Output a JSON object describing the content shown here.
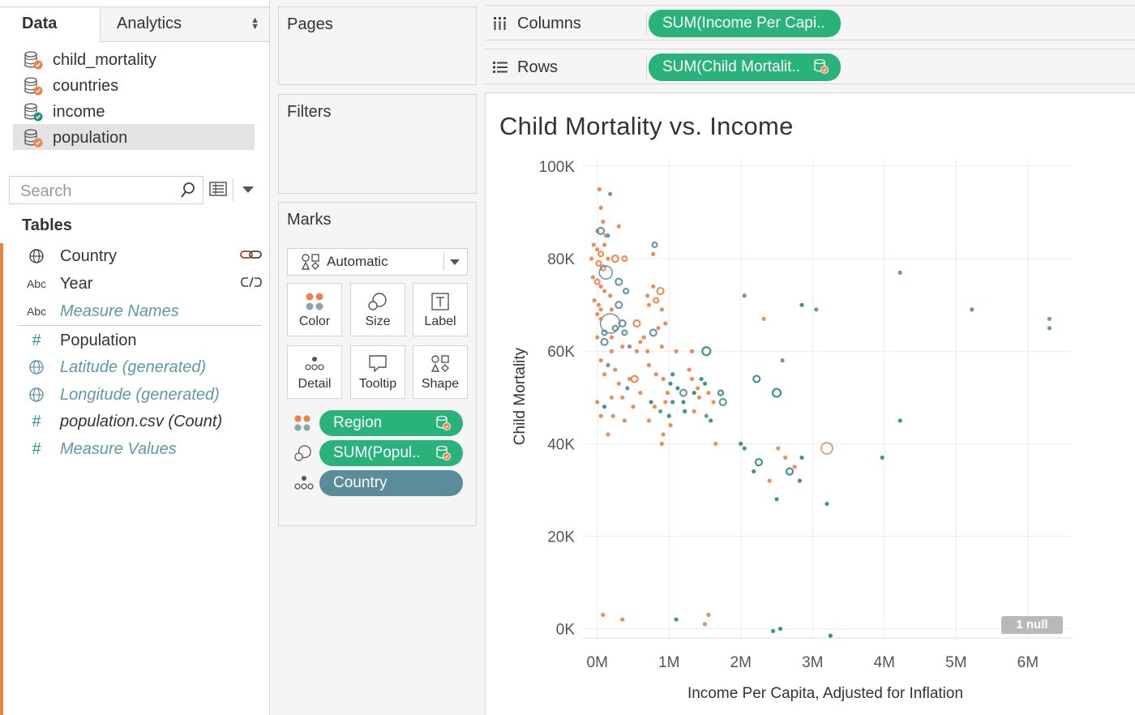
{
  "left_pane": {
    "tabs": {
      "data": "Data",
      "analytics": "Analytics"
    },
    "data_sources": [
      "child_mortality",
      "countries",
      "income",
      "population"
    ],
    "selected_source": "population",
    "search_placeholder": "Search",
    "tables_title": "Tables",
    "fields": [
      {
        "name": "Country",
        "type": "geo",
        "style": "normal",
        "right_icon": "link-icon"
      },
      {
        "name": "Year",
        "type": "Abc",
        "style": "normal",
        "right_icon": "broken-link-icon"
      },
      {
        "name": "Measure Names",
        "type": "Abc",
        "style": "generated"
      },
      {
        "name": "Population",
        "type": "#",
        "style": "normal"
      },
      {
        "name": "Latitude (generated)",
        "type": "geo",
        "style": "generated"
      },
      {
        "name": "Longitude (generated)",
        "type": "geo",
        "style": "generated"
      },
      {
        "name": "population.csv (Count)",
        "type": "#",
        "style": "italic"
      },
      {
        "name": "Measure Values",
        "type": "#",
        "style": "generated"
      }
    ]
  },
  "shelves": {
    "pages": "Pages",
    "filters": "Filters",
    "columns": {
      "label": "Columns",
      "pill": "SUM(Income Per Capi.."
    },
    "rows": {
      "label": "Rows",
      "pill": "SUM(Child Mortalit.."
    }
  },
  "marks": {
    "title": "Marks",
    "mark_type": "Automatic",
    "buttons": [
      "Color",
      "Size",
      "Label",
      "Detail",
      "Tooltip",
      "Shape"
    ],
    "pills": [
      {
        "name": "Region",
        "icon": "color-icon",
        "style": "green"
      },
      {
        "name": "SUM(Popul..",
        "icon": "size-icon",
        "style": "green"
      },
      {
        "name": "Country",
        "icon": "detail-icon",
        "style": "teal"
      }
    ]
  },
  "colors": {
    "orange": "#e8834a",
    "teal": "#2a8a7e",
    "slate": "#5b8ea0",
    "green_pill": "#2ab27b",
    "teal_pill": "#5a8c9c"
  },
  "chart_data": {
    "type": "scatter",
    "title": "Child Mortality vs. Income",
    "xlabel": "Income Per Capita, Adjusted for Inflation",
    "ylabel": "Child Mortality",
    "xlim": [
      -0.2,
      6.6
    ],
    "ylim": [
      -2,
      100
    ],
    "x_unit": "M",
    "y_unit": "K",
    "x_ticks": [
      0,
      1,
      2,
      3,
      4,
      5,
      6
    ],
    "x_tick_labels": [
      "0M",
      "1M",
      "2M",
      "3M",
      "4M",
      "5M",
      "6M"
    ],
    "y_ticks": [
      0,
      20,
      40,
      60,
      80,
      100
    ],
    "y_tick_labels": [
      "0K",
      "20K",
      "40K",
      "60K",
      "80K",
      "100K"
    ],
    "grid": true,
    "null_indicator": "1 null",
    "points": [
      {
        "x": 0.03,
        "y": 95,
        "c": "orange",
        "s": 2
      },
      {
        "x": 0.18,
        "y": 94,
        "c": "slate",
        "s": 2
      },
      {
        "x": 0.05,
        "y": 91,
        "c": "orange",
        "s": 2
      },
      {
        "x": 0.0,
        "y": 86,
        "c": "orange",
        "s": 2
      },
      {
        "x": 0.08,
        "y": 88,
        "c": "orange",
        "s": 2
      },
      {
        "x": 0.12,
        "y": 85,
        "c": "orange",
        "s": 2
      },
      {
        "x": 0.3,
        "y": 87,
        "c": "orange",
        "s": 2
      },
      {
        "x": 0.05,
        "y": 86,
        "c": "slate",
        "s": 4
      },
      {
        "x": 0.15,
        "y": 85,
        "c": "slate",
        "s": 2
      },
      {
        "x": -0.05,
        "y": 83,
        "c": "orange",
        "s": 2
      },
      {
        "x": 0.0,
        "y": 82,
        "c": "orange",
        "s": 2
      },
      {
        "x": 0.05,
        "y": 81,
        "c": "orange",
        "s": 3
      },
      {
        "x": 0.1,
        "y": 83,
        "c": "orange",
        "s": 2
      },
      {
        "x": -0.08,
        "y": 80,
        "c": "orange",
        "s": 2
      },
      {
        "x": 0.02,
        "y": 79,
        "c": "orange",
        "s": 3
      },
      {
        "x": 0.08,
        "y": 78,
        "c": "orange",
        "s": 3
      },
      {
        "x": 0.15,
        "y": 80,
        "c": "orange",
        "s": 2
      },
      {
        "x": 0.25,
        "y": 80,
        "c": "orange",
        "s": 4
      },
      {
        "x": 0.12,
        "y": 77,
        "c": "slate",
        "s": 8
      },
      {
        "x": 0.38,
        "y": 80,
        "c": "orange",
        "s": 3
      },
      {
        "x": 0.8,
        "y": 83,
        "c": "slate",
        "s": 3
      },
      {
        "x": 0.78,
        "y": 81,
        "c": "orange",
        "s": 2
      },
      {
        "x": -0.06,
        "y": 76,
        "c": "orange",
        "s": 2
      },
      {
        "x": 0.0,
        "y": 75,
        "c": "orange",
        "s": 3
      },
      {
        "x": 0.05,
        "y": 74,
        "c": "orange",
        "s": 2
      },
      {
        "x": 0.1,
        "y": 73,
        "c": "orange",
        "s": 2
      },
      {
        "x": 0.18,
        "y": 72,
        "c": "orange",
        "s": 2
      },
      {
        "x": 0.3,
        "y": 75,
        "c": "slate",
        "s": 4
      },
      {
        "x": 0.4,
        "y": 73,
        "c": "slate",
        "s": 3
      },
      {
        "x": -0.04,
        "y": 71,
        "c": "orange",
        "s": 2
      },
      {
        "x": 0.02,
        "y": 70,
        "c": "orange",
        "s": 2
      },
      {
        "x": 0.0,
        "y": 68,
        "c": "orange",
        "s": 2
      },
      {
        "x": 0.05,
        "y": 69,
        "c": "orange",
        "s": 2
      },
      {
        "x": 0.2,
        "y": 69,
        "c": "orange",
        "s": 2
      },
      {
        "x": 0.3,
        "y": 70,
        "c": "slate",
        "s": 4
      },
      {
        "x": 0.7,
        "y": 72,
        "c": "orange",
        "s": 2
      },
      {
        "x": 0.82,
        "y": 71,
        "c": "orange",
        "s": 3
      },
      {
        "x": 0.88,
        "y": 73,
        "c": "orange",
        "s": 4
      },
      {
        "x": 0.78,
        "y": 74,
        "c": "orange",
        "s": 2
      },
      {
        "x": 0.72,
        "y": 70,
        "c": "orange",
        "s": 2
      },
      {
        "x": 0.9,
        "y": 69,
        "c": "orange",
        "s": 2
      },
      {
        "x": 0.18,
        "y": 66,
        "c": "slate",
        "s": 12
      },
      {
        "x": 0.05,
        "y": 67,
        "c": "orange",
        "s": 2
      },
      {
        "x": 0.1,
        "y": 64,
        "c": "slate",
        "s": 3
      },
      {
        "x": 0.25,
        "y": 65,
        "c": "slate",
        "s": 3
      },
      {
        "x": 0.35,
        "y": 66,
        "c": "slate",
        "s": 4
      },
      {
        "x": 0.38,
        "y": 64,
        "c": "slate",
        "s": 3
      },
      {
        "x": 0.1,
        "y": 62,
        "c": "slate",
        "s": 4
      },
      {
        "x": 0.0,
        "y": 63,
        "c": "orange",
        "s": 2
      },
      {
        "x": 0.2,
        "y": 63,
        "c": "orange",
        "s": 2
      },
      {
        "x": 0.55,
        "y": 66,
        "c": "orange",
        "s": 4
      },
      {
        "x": 0.65,
        "y": 63,
        "c": "orange",
        "s": 2
      },
      {
        "x": 0.78,
        "y": 64,
        "c": "slate",
        "s": 4
      },
      {
        "x": 0.85,
        "y": 65,
        "c": "orange",
        "s": 2
      },
      {
        "x": 0.95,
        "y": 66,
        "c": "orange",
        "s": 2
      },
      {
        "x": 0.6,
        "y": 62,
        "c": "orange",
        "s": 2
      },
      {
        "x": 0.2,
        "y": 60,
        "c": "orange",
        "s": 2
      },
      {
        "x": 0.35,
        "y": 61,
        "c": "orange",
        "s": 2
      },
      {
        "x": 0.45,
        "y": 61,
        "c": "slate",
        "s": 2
      },
      {
        "x": 0.55,
        "y": 60,
        "c": "orange",
        "s": 2
      },
      {
        "x": 0.7,
        "y": 60,
        "c": "orange",
        "s": 2
      },
      {
        "x": 0.9,
        "y": 61,
        "c": "orange",
        "s": 2
      },
      {
        "x": 1.1,
        "y": 60,
        "c": "orange",
        "s": 2
      },
      {
        "x": 1.32,
        "y": 60,
        "c": "orange",
        "s": 2
      },
      {
        "x": 1.52,
        "y": 60,
        "c": "teal",
        "s": 5
      },
      {
        "x": 0.05,
        "y": 58,
        "c": "orange",
        "s": 2
      },
      {
        "x": 0.15,
        "y": 57,
        "c": "slate",
        "s": 2
      },
      {
        "x": 0.25,
        "y": 56,
        "c": "orange",
        "s": 2
      },
      {
        "x": 0.1,
        "y": 55,
        "c": "orange",
        "s": 2
      },
      {
        "x": 0.3,
        "y": 53,
        "c": "orange",
        "s": 2
      },
      {
        "x": 0.42,
        "y": 52,
        "c": "slate",
        "s": 2
      },
      {
        "x": 0.45,
        "y": 54,
        "c": "orange",
        "s": 2
      },
      {
        "x": 0.52,
        "y": 54,
        "c": "orange",
        "s": 4
      },
      {
        "x": 0.72,
        "y": 57,
        "c": "orange",
        "s": 2
      },
      {
        "x": 0.82,
        "y": 55,
        "c": "orange",
        "s": 2
      },
      {
        "x": 0.92,
        "y": 54,
        "c": "orange",
        "s": 2
      },
      {
        "x": 1.05,
        "y": 55,
        "c": "teal",
        "s": 2
      },
      {
        "x": 1.28,
        "y": 56,
        "c": "orange",
        "s": 2
      },
      {
        "x": 1.32,
        "y": 54,
        "c": "orange",
        "s": 2
      },
      {
        "x": 1.45,
        "y": 54,
        "c": "teal",
        "s": 2
      },
      {
        "x": 1.5,
        "y": 53,
        "c": "teal",
        "s": 2
      },
      {
        "x": 1.4,
        "y": 52,
        "c": "orange",
        "s": 2
      },
      {
        "x": 1.12,
        "y": 52,
        "c": "teal",
        "s": 2
      },
      {
        "x": 1.02,
        "y": 53,
        "c": "teal",
        "s": 2
      },
      {
        "x": 0.98,
        "y": 51,
        "c": "orange",
        "s": 2
      },
      {
        "x": 1.2,
        "y": 51,
        "c": "slate",
        "s": 4
      },
      {
        "x": 1.35,
        "y": 51,
        "c": "teal",
        "s": 2
      },
      {
        "x": 1.42,
        "y": 50,
        "c": "orange",
        "s": 2
      },
      {
        "x": 1.55,
        "y": 51,
        "c": "orange",
        "s": 2
      },
      {
        "x": 1.72,
        "y": 51,
        "c": "teal",
        "s": 3
      },
      {
        "x": 1.62,
        "y": 49,
        "c": "orange",
        "s": 2
      },
      {
        "x": 1.75,
        "y": 49,
        "c": "slate",
        "s": 4
      },
      {
        "x": 1.2,
        "y": 49,
        "c": "teal",
        "s": 2
      },
      {
        "x": 1.05,
        "y": 49,
        "c": "teal",
        "s": 2
      },
      {
        "x": 0.95,
        "y": 49,
        "c": "orange",
        "s": 2
      },
      {
        "x": 0.75,
        "y": 49,
        "c": "teal",
        "s": 2
      },
      {
        "x": 0.6,
        "y": 51,
        "c": "orange",
        "s": 2
      },
      {
        "x": 0.35,
        "y": 50,
        "c": "orange",
        "s": 2
      },
      {
        "x": 0.2,
        "y": 50,
        "c": "orange",
        "s": 2
      },
      {
        "x": 0.0,
        "y": 49,
        "c": "orange",
        "s": 2
      },
      {
        "x": 0.1,
        "y": 48,
        "c": "teal",
        "s": 2
      },
      {
        "x": 0.5,
        "y": 48,
        "c": "orange",
        "s": 2
      },
      {
        "x": 0.8,
        "y": 48,
        "c": "orange",
        "s": 2
      },
      {
        "x": 0.88,
        "y": 47,
        "c": "slate",
        "s": 2
      },
      {
        "x": 1.0,
        "y": 46,
        "c": "teal",
        "s": 2
      },
      {
        "x": 1.22,
        "y": 47,
        "c": "teal",
        "s": 2
      },
      {
        "x": 1.35,
        "y": 47,
        "c": "orange",
        "s": 2
      },
      {
        "x": 1.52,
        "y": 46,
        "c": "slate",
        "s": 2
      },
      {
        "x": 1.58,
        "y": 45,
        "c": "teal",
        "s": 2
      },
      {
        "x": 0.05,
        "y": 46,
        "c": "orange",
        "s": 2
      },
      {
        "x": 0.22,
        "y": 46,
        "c": "orange",
        "s": 2
      },
      {
        "x": 0.38,
        "y": 45,
        "c": "orange",
        "s": 2
      },
      {
        "x": 0.72,
        "y": 45,
        "c": "orange",
        "s": 2
      },
      {
        "x": 1.02,
        "y": 44,
        "c": "orange",
        "s": 2
      },
      {
        "x": 0.15,
        "y": 42,
        "c": "orange",
        "s": 2
      },
      {
        "x": 0.92,
        "y": 42,
        "c": "orange",
        "s": 2
      },
      {
        "x": 0.9,
        "y": 40,
        "c": "orange",
        "s": 2
      },
      {
        "x": 1.65,
        "y": 40,
        "c": "orange",
        "s": 2
      },
      {
        "x": 2.0,
        "y": 40,
        "c": "teal",
        "s": 2
      },
      {
        "x": 2.05,
        "y": 39,
        "c": "teal",
        "s": 2
      },
      {
        "x": 2.22,
        "y": 54,
        "c": "teal",
        "s": 4
      },
      {
        "x": 2.5,
        "y": 51,
        "c": "teal",
        "s": 5
      },
      {
        "x": 2.52,
        "y": 39,
        "c": "orange",
        "s": 2
      },
      {
        "x": 3.2,
        "y": 39,
        "c": "orange",
        "s": 7
      },
      {
        "x": 2.05,
        "y": 72,
        "c": "slate",
        "s": 2
      },
      {
        "x": 2.32,
        "y": 67,
        "c": "orange",
        "s": 2
      },
      {
        "x": 2.58,
        "y": 58,
        "c": "slate",
        "s": 2
      },
      {
        "x": 2.85,
        "y": 70,
        "c": "teal",
        "s": 2
      },
      {
        "x": 3.05,
        "y": 69,
        "c": "slate",
        "s": 2
      },
      {
        "x": 4.22,
        "y": 77,
        "c": "slate",
        "s": 2
      },
      {
        "x": 4.22,
        "y": 45,
        "c": "teal",
        "s": 2
      },
      {
        "x": 3.97,
        "y": 37,
        "c": "teal",
        "s": 2
      },
      {
        "x": 5.22,
        "y": 69,
        "c": "slate",
        "s": 2
      },
      {
        "x": 6.3,
        "y": 67,
        "c": "slate",
        "s": 2
      },
      {
        "x": 6.3,
        "y": 65,
        "c": "slate",
        "s": 2
      },
      {
        "x": 2.25,
        "y": 36,
        "c": "teal",
        "s": 4
      },
      {
        "x": 2.18,
        "y": 34,
        "c": "teal",
        "s": 2
      },
      {
        "x": 2.62,
        "y": 37,
        "c": "orange",
        "s": 2
      },
      {
        "x": 2.75,
        "y": 35,
        "c": "orange",
        "s": 2
      },
      {
        "x": 2.68,
        "y": 34,
        "c": "teal",
        "s": 4
      },
      {
        "x": 2.85,
        "y": 37,
        "c": "teal",
        "s": 2
      },
      {
        "x": 2.82,
        "y": 32,
        "c": "teal",
        "s": 2
      },
      {
        "x": 2.4,
        "y": 32,
        "c": "orange",
        "s": 2
      },
      {
        "x": 2.5,
        "y": 28,
        "c": "teal",
        "s": 2
      },
      {
        "x": 3.2,
        "y": 27,
        "c": "teal",
        "s": 2
      },
      {
        "x": 0.08,
        "y": 3,
        "c": "orange",
        "s": 2
      },
      {
        "x": 0.35,
        "y": 2,
        "c": "orange",
        "s": 2
      },
      {
        "x": 1.1,
        "y": 2,
        "c": "teal",
        "s": 2
      },
      {
        "x": 1.5,
        "y": 1,
        "c": "orange",
        "s": 2
      },
      {
        "x": 1.55,
        "y": 3,
        "c": "orange",
        "s": 2
      },
      {
        "x": 2.45,
        "y": -0.5,
        "c": "teal",
        "s": 2
      },
      {
        "x": 2.55,
        "y": 0,
        "c": "teal",
        "s": 2
      },
      {
        "x": 3.25,
        "y": -1.5,
        "c": "teal",
        "s": 2
      }
    ]
  }
}
